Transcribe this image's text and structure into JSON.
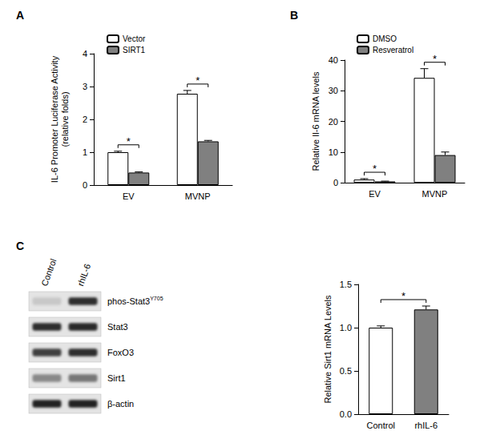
{
  "panel_labels": [
    "A",
    "B",
    "C"
  ],
  "chart_data": [
    {
      "type": "bar",
      "y_label": "IL-6 Promoter Luciferase Activity\n(relative folds)",
      "categories": [
        "EV",
        "MVNP"
      ],
      "series": [
        {
          "name": "Vector",
          "color": "#ffffff",
          "values": [
            1.0,
            2.78
          ],
          "errors": [
            0.03,
            0.1
          ]
        },
        {
          "name": "SIRT1",
          "color": "#808080",
          "values": [
            0.38,
            1.33
          ],
          "errors": [
            0.02,
            0.03
          ]
        }
      ],
      "ylim": [
        0,
        4
      ],
      "yticks": [
        0,
        1,
        2,
        3,
        4
      ],
      "legend": "upper left",
      "annotations": [
        {
          "text": "*",
          "category": "EV"
        },
        {
          "text": "*",
          "category": "MVNP"
        }
      ]
    },
    {
      "type": "bar",
      "y_label": "Relative Il-6 mRNA levels",
      "categories": [
        "EV",
        "MVNP"
      ],
      "series": [
        {
          "name": "DMSO",
          "color": "#ffffff",
          "values": [
            1.0,
            34.2
          ],
          "errors": [
            0.3,
            3.0
          ]
        },
        {
          "name": "Resveratrol",
          "color": "#808080",
          "values": [
            0.4,
            9.0
          ],
          "errors": [
            0.1,
            1.0
          ]
        }
      ],
      "ylim": [
        0,
        40
      ],
      "yticks": [
        0,
        10,
        20,
        30,
        40
      ],
      "legend": "upper left",
      "annotations": [
        {
          "text": "*",
          "category": "EV"
        },
        {
          "text": "*",
          "category": "MVNP"
        }
      ]
    },
    {
      "type": "bar",
      "y_label": "Relative Sirt1 mRNA Levels",
      "categories": [
        "Control",
        "rhIL-6"
      ],
      "values": [
        1.0,
        1.21
      ],
      "errors": [
        0.02,
        0.04
      ],
      "colors": [
        "#ffffff",
        "#808080"
      ],
      "ylim": [
        0,
        1.5
      ],
      "yticks": [
        {
          "value": 0,
          "label": "0.0"
        },
        0.5,
        {
          "value": 1,
          "label": "1.0"
        },
        1.5
      ],
      "annotations": [
        {
          "text": "*",
          "between": [
            "Control",
            "rhIL-6"
          ]
        }
      ]
    }
  ],
  "blot": {
    "lanes": [
      "Control",
      "rhIL-6"
    ],
    "bands": [
      {
        "label": "phos-Stat3",
        "sup": "Y705",
        "intensity": [
          0.12,
          0.8
        ]
      },
      {
        "label": "Stat3",
        "intensity": [
          0.8,
          0.82
        ]
      },
      {
        "label": "FoxO3",
        "intensity": [
          0.72,
          0.8
        ]
      },
      {
        "label": "Sirt1",
        "intensity": [
          0.4,
          0.48
        ]
      },
      {
        "label": "β-actin",
        "intensity": [
          0.85,
          0.85
        ]
      }
    ]
  }
}
